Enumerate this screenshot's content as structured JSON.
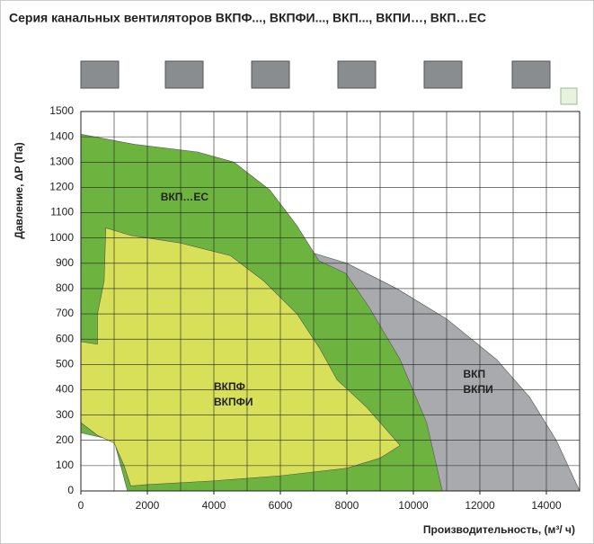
{
  "chart_data": {
    "type": "area-regions",
    "title": "Серия канальных вентиляторов ВКПФ..., ВКПФИ..., ВКП..., ВКПИ…, ВКП…EC",
    "x_label": "Производительность, (м³/ ч)",
    "y_label": "Давление, ΔP (Па)",
    "xlim": [
      0,
      15000
    ],
    "ylim": [
      0,
      1500
    ],
    "xticks": [
      0,
      2000,
      4000,
      6000,
      8000,
      10000,
      12000,
      14000
    ],
    "xgrid": [
      1000,
      2000,
      3000,
      4000,
      5000,
      6000,
      7000,
      8000,
      9000,
      10000,
      11000,
      12000,
      13000,
      14000
    ],
    "yticks": [
      0,
      100,
      200,
      300,
      400,
      500,
      600,
      700,
      800,
      900,
      1000,
      1100,
      1200,
      1300,
      1400,
      1500
    ],
    "grid": true,
    "series": [
      {
        "name": [
          "ВКП",
          "ВКПИ"
        ],
        "color": "#a8aaad",
        "label_at": [
          11500,
          460
        ],
        "x": [
          600,
          3500,
          6500,
          8000,
          9500,
          11000,
          12500,
          13500,
          14300,
          15000,
          1500,
          1200,
          1000,
          600
        ],
        "y": [
          1050,
          1020,
          960,
          900,
          800,
          680,
          520,
          370,
          200,
          0,
          0,
          100,
          200,
          230
        ]
      },
      {
        "name": [
          "ВКП…EC"
        ],
        "color": "#6db33f",
        "label_at": [
          2400,
          1160
        ],
        "x": [
          0,
          1620,
          3510,
          4600,
          5680,
          6490,
          7160,
          7970,
          8650,
          9600,
          10400,
          10870,
          1400,
          1000,
          0
        ],
        "y": [
          1410,
          1370,
          1340,
          1300,
          1190,
          1050,
          910,
          860,
          730,
          520,
          270,
          0,
          0,
          200,
          230
        ]
      },
      {
        "name": [
          "ВКПФ",
          "ВКПФИ"
        ],
        "color": "#d8e05a",
        "label_at": [
          4000,
          410
        ],
        "x": [
          0,
          500,
          500,
          700,
          750,
          1500,
          3000,
          4500,
          5500,
          6500,
          7200,
          7700,
          8600,
          9600,
          9000,
          8000,
          6000,
          4000,
          2000,
          1500,
          1300,
          1000,
          500,
          0
        ],
        "y": [
          590,
          580,
          700,
          830,
          1040,
          1010,
          980,
          930,
          830,
          700,
          560,
          440,
          330,
          180,
          130,
          90,
          60,
          40,
          25,
          20,
          100,
          190,
          220,
          270
        ]
      }
    ]
  }
}
